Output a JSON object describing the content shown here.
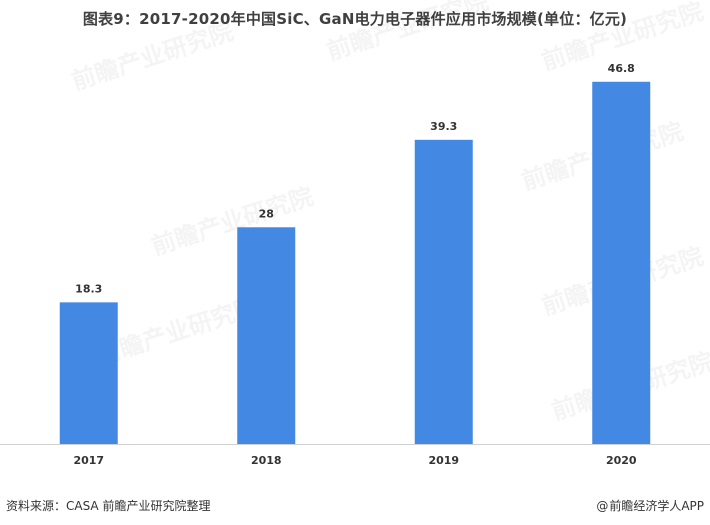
{
  "chart_data": {
    "type": "bar",
    "title": "图表9：2017-2020年中国SiC、GaN电力电子器件应用市场规模(单位：亿元)",
    "categories": [
      "2017",
      "2018",
      "2019",
      "2020"
    ],
    "values": [
      18.3,
      28,
      39.3,
      46.8
    ],
    "value_labels": [
      "18.3",
      "28",
      "39.3",
      "46.8"
    ],
    "xlabel": "",
    "ylabel": "",
    "ylim": [
      0,
      50
    ],
    "grid": false,
    "legend": "none",
    "bar_color": "#4389E4"
  },
  "footer": {
    "source": "资料来源：CASA 前瞻产业研究院整理",
    "brand": "前瞻经济学人APP",
    "brand_prefix": "@"
  },
  "watermark": {
    "text": "前瞻产业研究院"
  }
}
